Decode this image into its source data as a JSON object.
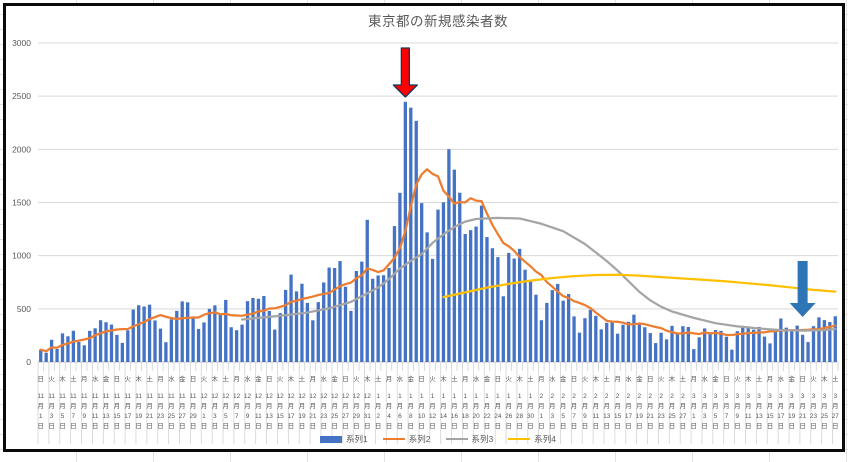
{
  "chart": {
    "title": "東京都の新規感染者数",
    "background": "excel-worksheet",
    "frame_border_color": "#0a0a0a",
    "gridline_color": "#d9d9d9",
    "text_color": "#595959",
    "annotations": [
      {
        "name": "red-arrow",
        "shape": "down-arrow",
        "fill": "#ff0000",
        "outline": "#16365c",
        "over_day_index": 67,
        "points_at": "1月7日の最大値の棒"
      },
      {
        "name": "blue-arrow",
        "shape": "down-arrow",
        "fill": "#2e75b6",
        "outline": "none",
        "over_day_index": 140,
        "points_at": "3月21日付近の棒"
      }
    ]
  },
  "chart_data": {
    "type": "bar",
    "combo": "daily bars + 3 line series",
    "title": "東京都の新規感染者数",
    "ylim": [
      0,
      3000
    ],
    "y_ticks": [
      0,
      500,
      1000,
      1500,
      2000,
      2500,
      3000
    ],
    "x_start_date": "2020-11-01",
    "x_days": 147,
    "x_tick_interval_days": 2,
    "x_labels": [
      [
        "日",
        11,
        1
      ],
      [
        "火",
        11,
        3
      ],
      [
        "木",
        11,
        5
      ],
      [
        "土",
        11,
        7
      ],
      [
        "月",
        11,
        9
      ],
      [
        "水",
        11,
        11
      ],
      [
        "金",
        11,
        13
      ],
      [
        "日",
        11,
        15
      ],
      [
        "火",
        11,
        17
      ],
      [
        "木",
        11,
        19
      ],
      [
        "土",
        11,
        21
      ],
      [
        "月",
        11,
        23
      ],
      [
        "水",
        11,
        25
      ],
      [
        "金",
        11,
        27
      ],
      [
        "日",
        11,
        29
      ],
      [
        "火",
        12,
        1
      ],
      [
        "木",
        12,
        3
      ],
      [
        "土",
        12,
        5
      ],
      [
        "月",
        12,
        7
      ],
      [
        "水",
        12,
        9
      ],
      [
        "金",
        12,
        11
      ],
      [
        "日",
        12,
        13
      ],
      [
        "火",
        12,
        15
      ],
      [
        "木",
        12,
        17
      ],
      [
        "土",
        12,
        19
      ],
      [
        "月",
        12,
        21
      ],
      [
        "水",
        12,
        23
      ],
      [
        "金",
        12,
        25
      ],
      [
        "日",
        12,
        27
      ],
      [
        "火",
        12,
        29
      ],
      [
        "木",
        12,
        31
      ],
      [
        "土",
        1,
        2
      ],
      [
        "月",
        1,
        4
      ],
      [
        "水",
        1,
        6
      ],
      [
        "金",
        1,
        8
      ],
      [
        "日",
        1,
        10
      ],
      [
        "火",
        1,
        12
      ],
      [
        "木",
        1,
        14
      ],
      [
        "土",
        1,
        16
      ],
      [
        "月",
        1,
        18
      ],
      [
        "水",
        1,
        20
      ],
      [
        "金",
        1,
        22
      ],
      [
        "日",
        1,
        24
      ],
      [
        "火",
        1,
        26
      ],
      [
        "木",
        1,
        28
      ],
      [
        "土",
        1,
        30
      ],
      [
        "月",
        2,
        1
      ],
      [
        "水",
        2,
        3
      ],
      [
        "金",
        2,
        5
      ],
      [
        "日",
        2,
        7
      ],
      [
        "火",
        2,
        9
      ],
      [
        "木",
        2,
        11
      ],
      [
        "土",
        2,
        13
      ],
      [
        "月",
        2,
        15
      ],
      [
        "水",
        2,
        17
      ],
      [
        "金",
        2,
        19
      ],
      [
        "日",
        2,
        21
      ],
      [
        "火",
        2,
        23
      ],
      [
        "木",
        2,
        25
      ],
      [
        "土",
        2,
        27
      ],
      [
        "月",
        3,
        1
      ],
      [
        "水",
        3,
        3
      ],
      [
        "金",
        3,
        5
      ],
      [
        "日",
        3,
        7
      ],
      [
        "火",
        3,
        9
      ],
      [
        "木",
        3,
        11
      ],
      [
        "土",
        3,
        13
      ],
      [
        "月",
        3,
        15
      ],
      [
        "水",
        3,
        17
      ],
      [
        "金",
        3,
        19
      ],
      [
        "日",
        3,
        21
      ],
      [
        "火",
        3,
        23
      ],
      [
        "木",
        3,
        25
      ],
      [
        "土",
        3,
        27
      ]
    ],
    "month_suffix": "月",
    "day_suffix": "日",
    "series": [
      {
        "name": "系列1",
        "type": "bar",
        "color": "#4472c4",
        "daily_values": [
          116,
          87,
          209,
          122,
          269,
          242,
          294,
          189,
          157,
          293,
          317,
          393,
          374,
          352,
          255,
          180,
          298,
          493,
          534,
          522,
          539,
          391,
          314,
          186,
          401,
          481,
          570,
          561,
          418,
          311,
          372,
          500,
          533,
          449,
          584,
          327,
          299,
          352,
          572,
          602,
          595,
          621,
          480,
          305,
          460,
          678,
          822,
          664,
          736,
          556,
          392,
          563,
          748,
          888,
          884,
          949,
          708,
          481,
          856,
          944,
          1337,
          783,
          814,
          816,
          884,
          1278,
          1591,
          2447,
          2392,
          2268,
          1494,
          1219,
          970,
          1433,
          1502,
          2001,
          1809,
          1592,
          1204,
          1240,
          1274,
          1471,
          1175,
          1070,
          986,
          618,
          1026,
          973,
          1064,
          868,
          769,
          633,
          393,
          556,
          676,
          734,
          577,
          639,
          429,
          276,
          412,
          491,
          434,
          307,
          369,
          371,
          266,
          350,
          378,
          445,
          353,
          327,
          272,
          178,
          275,
          213,
          340,
          270,
          337,
          329,
          121,
          232,
          316,
          279,
          301,
          293,
          237,
          116,
          290,
          340,
          335,
          304,
          330,
          239,
          175,
          300,
          409,
          323,
          303,
          342,
          256,
          187,
          337,
          420,
          394,
          376,
          430
        ]
      },
      {
        "name": "系列2",
        "type": "line",
        "color": "#ed7d31",
        "derivation": "7-day trailing moving average of 系列1"
      },
      {
        "name": "系列3",
        "type": "line",
        "color": "#a5a5a5",
        "points": [
          [
            37,
            400
          ],
          [
            41,
            420
          ],
          [
            45,
            440
          ],
          [
            49,
            465
          ],
          [
            53,
            505
          ],
          [
            57,
            565
          ],
          [
            60,
            645
          ],
          [
            62,
            700
          ],
          [
            64,
            780
          ],
          [
            66,
            880
          ],
          [
            68,
            950
          ],
          [
            70,
            1015
          ],
          [
            72,
            1120
          ],
          [
            74,
            1200
          ],
          [
            76,
            1270
          ],
          [
            78,
            1320
          ],
          [
            80,
            1345
          ],
          [
            84,
            1355
          ],
          [
            88,
            1350
          ],
          [
            92,
            1300
          ],
          [
            96,
            1230
          ],
          [
            100,
            1110
          ],
          [
            104,
            950
          ],
          [
            106,
            860
          ],
          [
            108,
            760
          ],
          [
            110,
            660
          ],
          [
            112,
            580
          ],
          [
            114,
            520
          ],
          [
            116,
            475
          ],
          [
            120,
            415
          ],
          [
            124,
            365
          ],
          [
            128,
            335
          ],
          [
            132,
            315
          ],
          [
            136,
            300
          ],
          [
            140,
            295
          ],
          [
            144,
            300
          ],
          [
            146,
            310
          ]
        ]
      },
      {
        "name": "系列4",
        "type": "line",
        "color": "#ffc000",
        "points": [
          [
            74,
            610
          ],
          [
            78,
            655
          ],
          [
            82,
            700
          ],
          [
            86,
            735
          ],
          [
            90,
            765
          ],
          [
            94,
            790
          ],
          [
            98,
            808
          ],
          [
            102,
            818
          ],
          [
            106,
            820
          ],
          [
            110,
            812
          ],
          [
            114,
            798
          ],
          [
            118,
            785
          ],
          [
            122,
            772
          ],
          [
            126,
            758
          ],
          [
            130,
            740
          ],
          [
            134,
            722
          ],
          [
            138,
            700
          ],
          [
            142,
            678
          ],
          [
            146,
            662
          ]
        ]
      }
    ]
  }
}
